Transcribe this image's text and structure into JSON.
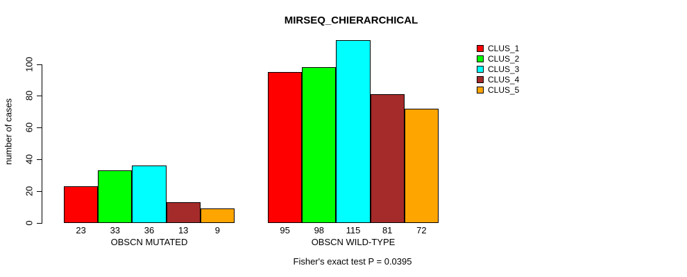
{
  "title": "MIRSEQ_CHIERARCHICAL",
  "footer": "Fisher's exact test P = 0.0395",
  "chart_data": {
    "type": "bar",
    "title": "MIRSEQ_CHIERARCHICAL",
    "xlabel": "",
    "ylabel": "number of cases",
    "ylim": [
      0,
      116
    ],
    "yticks": [
      0,
      20,
      40,
      60,
      80,
      100
    ],
    "grid": false,
    "legend_position": "right",
    "series_labels": [
      "CLUS_1",
      "CLUS_2",
      "CLUS_3",
      "CLUS_4",
      "CLUS_5"
    ],
    "colors": [
      "#FF0000",
      "#00FF00",
      "#00FFFF",
      "#A52A2A",
      "#FFA500"
    ],
    "groups": [
      {
        "label": "OBSCN MUTATED",
        "values": [
          23,
          33,
          36,
          13,
          9
        ]
      },
      {
        "label": "OBSCN WILD-TYPE",
        "values": [
          95,
          98,
          115,
          81,
          72
        ]
      }
    ],
    "annotation": "Fisher's exact test P = 0.0395"
  },
  "legend": {
    "entries": [
      {
        "label": "CLUS_1",
        "color": "#FF0000"
      },
      {
        "label": "CLUS_2",
        "color": "#00FF00"
      },
      {
        "label": "CLUS_3",
        "color": "#00FFFF"
      },
      {
        "label": "CLUS_4",
        "color": "#A52A2A"
      },
      {
        "label": "CLUS_5",
        "color": "#FFA500"
      }
    ]
  }
}
